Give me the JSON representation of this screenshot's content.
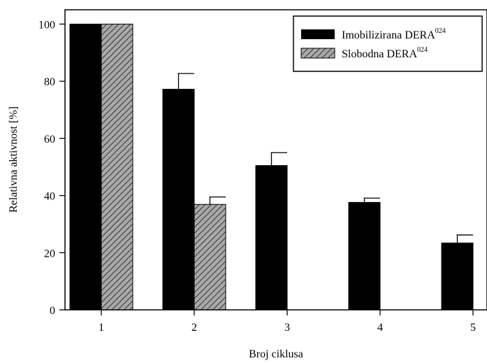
{
  "chart_data": {
    "type": "bar",
    "xlabel": "Broj ciklusa",
    "ylabel": "Relativna aktivnost [%]",
    "categories": [
      "1",
      "2",
      "3",
      "4",
      "5"
    ],
    "ylim": [
      0,
      105
    ],
    "yticks": [
      "0",
      "20",
      "40",
      "60",
      "80",
      "100"
    ],
    "grid": false,
    "legend_position": "top-right",
    "series": [
      {
        "name": "Imobilizirana DERA",
        "name_sup": "024",
        "fill": "solid",
        "color": "#000000",
        "values": [
          100,
          77.2,
          50.5,
          37.6,
          23.4
        ],
        "errors": [
          null,
          5.5,
          4.5,
          1.5,
          2.8
        ]
      },
      {
        "name": "Slobodna DERA",
        "name_sup": "024",
        "fill": "hatched",
        "color": "#9a9a9a",
        "values": [
          100,
          36.9,
          null,
          null,
          null
        ],
        "errors": [
          null,
          2.6,
          null,
          null,
          null
        ]
      }
    ]
  }
}
